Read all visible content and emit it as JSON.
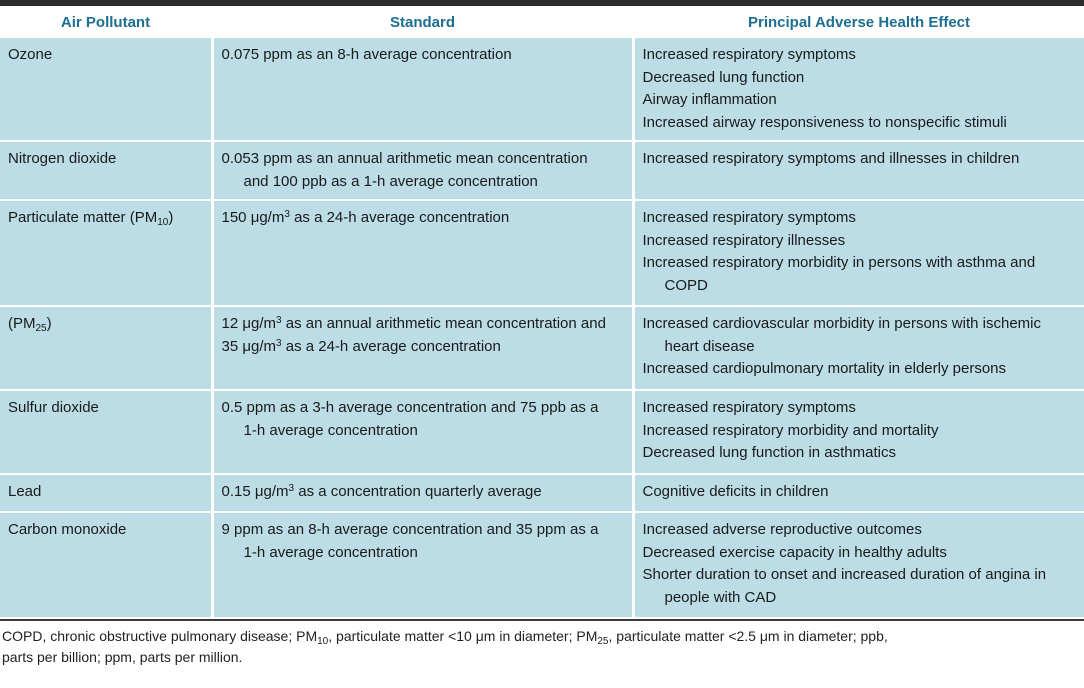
{
  "headers": {
    "pollutant": "Air Pollutant",
    "standard": "Standard",
    "effect": "Principal Adverse Health Effect"
  },
  "rows": [
    {
      "pollutant": "Ozone",
      "standard": [
        "0.075 ppm as an 8-h average concentration"
      ],
      "effects": [
        "Increased respiratory symptoms",
        "Decreased lung function",
        "Airway inflammation",
        "Increased airway responsiveness to nonspecific stimuli"
      ]
    },
    {
      "pollutant": "Nitrogen dioxide",
      "standard": [
        "0.053 ppm as an annual arithmetic mean concentration",
        "and 100 ppb as a 1-h average concentration"
      ],
      "effects": [
        "Increased respiratory symptoms and illnesses in children"
      ]
    },
    {
      "pollutant_prefix": "Particulate matter (PM",
      "pollutant_sub": "10",
      "pollutant_suffix": ")",
      "standard_prefix": "150 μg/m",
      "standard_sup": "3",
      "standard_suffix": " as a 24-h average concentration",
      "effects": [
        "Increased respiratory symptoms",
        "Increased respiratory illnesses",
        "Increased respiratory morbidity in persons with asthma and",
        "COPD"
      ]
    },
    {
      "pollutant_prefix": "(PM",
      "pollutant_sub": "25",
      "pollutant_suffix": ")",
      "standard_l1_prefix": "12 μg/m",
      "standard_l1_sup": "3",
      "standard_l1_suffix": " as an annual arithmetic mean concentration and",
      "standard_l2_prefix": "35 μg/m",
      "standard_l2_sup": "3",
      "standard_l2_suffix": " as a 24-h average concentration",
      "effects": [
        "Increased cardiovascular morbidity in persons with ischemic",
        "heart disease",
        "Increased cardiopulmonary mortality in elderly persons"
      ]
    },
    {
      "pollutant": "Sulfur dioxide",
      "standard": [
        "0.5 ppm as a 3-h average concentration and 75 ppb as a",
        "1-h average concentration"
      ],
      "effects": [
        "Increased respiratory symptoms",
        "Increased respiratory morbidity and mortality",
        "Decreased lung function in asthmatics"
      ]
    },
    {
      "pollutant": "Lead",
      "standard_prefix": "0.15 μg/m",
      "standard_sup": "3",
      "standard_suffix": " as a concentration quarterly average",
      "effects": [
        "Cognitive deficits in children"
      ]
    },
    {
      "pollutant": "Carbon monoxide",
      "standard": [
        "9 ppm as an 8-h average concentration and 35 ppm as a",
        "1-h average concentration"
      ],
      "effects": [
        "Increased adverse reproductive outcomes",
        "Decreased exercise capacity in healthy adults",
        "Shorter duration to onset and increased duration of angina in",
        "people with CAD"
      ]
    }
  ],
  "footnote": {
    "p1": "COPD, chronic obstructive pulmonary disease; PM",
    "s1": "10",
    "p2": ", particulate matter <10 μm in diameter; PM",
    "s2": "25",
    "p3": ", particulate matter <2.5 μm in diameter; ppb,",
    "p4": "parts per billion; ppm, parts per million."
  }
}
